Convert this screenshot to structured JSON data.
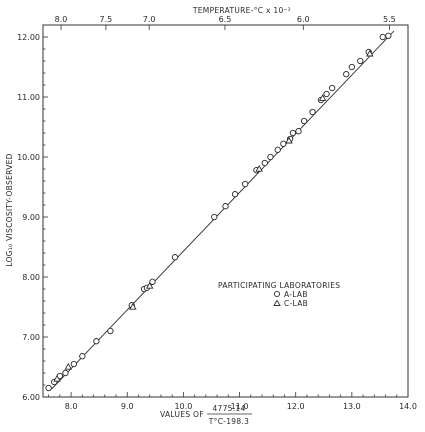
{
  "chart_data": {
    "type": "scatter",
    "title": "",
    "top_axis": {
      "label": "TEMPERATURE-°C x 10⁻²",
      "tick_labels": [
        "8.0",
        "7.5",
        "7.0",
        "6.5",
        "6.0",
        "5.5"
      ],
      "tick_values_x": [
        7.8213,
        8.6203,
        9.3903,
        10.7403,
        12.1353,
        13.6683
      ]
    },
    "xlabel": {
      "prefix": "VALUES OF",
      "numerator": "4775.14",
      "denominator": "T°C-198.3"
    },
    "ylabel": "LOG₁₀ VISCOSITY-OBSERVED",
    "xlim": [
      7.5,
      14.0
    ],
    "ylim": [
      6.0,
      12.2
    ],
    "x_ticks": [
      "8.0",
      "9.0",
      "10.0",
      "11.0",
      "12.0",
      "13.0",
      "14.0"
    ],
    "y_ticks": [
      "6.00",
      "7.00",
      "8.00",
      "9.00",
      "10.00",
      "11.00",
      "12.00"
    ],
    "grid": false,
    "legend": {
      "title": "PARTICIPATING LABORATORIES",
      "entries": [
        {
          "marker": "circle",
          "label": "A-LAB"
        },
        {
          "marker": "triangle",
          "label": "C-LAB"
        }
      ]
    },
    "fit_line": {
      "x": [
        7.65,
        13.75
      ],
      "y": [
        6.13,
        12.1
      ]
    },
    "series": [
      {
        "name": "A-LAB",
        "marker": "circle",
        "points": [
          [
            7.6,
            6.15
          ],
          [
            7.7,
            6.25
          ],
          [
            7.8,
            6.35
          ],
          [
            7.9,
            6.4
          ],
          [
            8.05,
            6.55
          ],
          [
            8.2,
            6.68
          ],
          [
            8.45,
            6.93
          ],
          [
            8.7,
            7.1
          ],
          [
            9.08,
            7.53
          ],
          [
            9.3,
            7.8
          ],
          [
            9.35,
            7.82
          ],
          [
            9.45,
            7.92
          ],
          [
            9.85,
            8.33
          ],
          [
            10.55,
            9.0
          ],
          [
            10.75,
            9.18
          ],
          [
            10.92,
            9.38
          ],
          [
            11.1,
            9.55
          ],
          [
            11.3,
            9.78
          ],
          [
            11.45,
            9.9
          ],
          [
            11.55,
            10.0
          ],
          [
            11.68,
            10.12
          ],
          [
            11.78,
            10.22
          ],
          [
            11.9,
            10.3
          ],
          [
            11.95,
            10.4
          ],
          [
            12.05,
            10.43
          ],
          [
            12.15,
            10.6
          ],
          [
            12.3,
            10.75
          ],
          [
            12.45,
            10.95
          ],
          [
            12.55,
            11.05
          ],
          [
            12.65,
            11.15
          ],
          [
            12.9,
            11.38
          ],
          [
            13.0,
            11.5
          ],
          [
            13.15,
            11.6
          ],
          [
            13.3,
            11.75
          ],
          [
            13.55,
            12.0
          ],
          [
            13.65,
            12.02
          ]
        ]
      },
      {
        "name": "C-LAB",
        "marker": "triangle",
        "points": [
          [
            7.75,
            6.3
          ],
          [
            7.95,
            6.5
          ],
          [
            9.1,
            7.5
          ],
          [
            9.4,
            7.85
          ],
          [
            11.35,
            9.8
          ],
          [
            11.88,
            10.27
          ],
          [
            12.48,
            10.98
          ],
          [
            13.32,
            11.72
          ]
        ]
      }
    ]
  }
}
